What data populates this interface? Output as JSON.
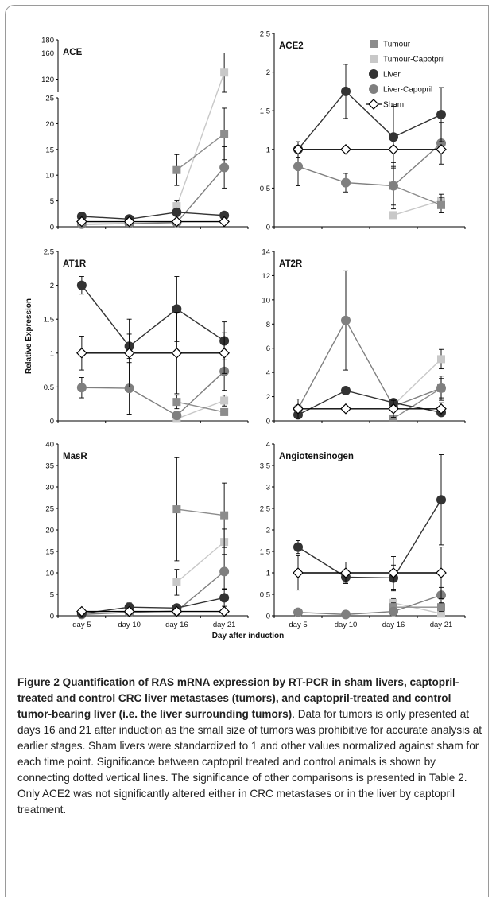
{
  "colors": {
    "tumour": "#8c8c8c",
    "tumour_captopril": "#c8c8c8",
    "liver": "#333333",
    "liver_captopril": "#7f7f7f",
    "sham": "#000000"
  },
  "legend": [
    "Tumour",
    "Tumour-Capotpril",
    "Liver",
    "Liver-Capopril",
    "Sham"
  ],
  "caption": {
    "title": "Figure 2 Quantification of RAS mRNA expression by RT-PCR in sham livers, captopril-treated and control CRC liver metastases (tumors), and captopril-treated and control tumor-bearing liver (i.e. the liver surrounding tumors)",
    "body": ". Data for tumors is only presented at days 16 and 21 after induction as the small size of tumors was prohibitive for accurate analysis at earlier stages. Sham livers were standardized to 1 and other values normalized against sham for each time point. Significance between captopril treated and control animals is shown by connecting dotted vertical lines. The significance of other comparisons is presented in Table 2. Only ACE2 was not significantly altered either in CRC metastases or in the liver by captopril treatment."
  },
  "chart_data": [
    {
      "type": "line",
      "title": "ACE",
      "categories": [
        "day 5",
        "day 10",
        "day 16",
        "day 21"
      ],
      "ylabel": "",
      "axis_break": true,
      "yticks_lower": [
        0,
        5,
        10,
        15,
        20,
        25
      ],
      "yticks_upper": [
        120,
        160,
        180
      ],
      "series": [
        {
          "name": "Tumour",
          "values": [
            null,
            null,
            11,
            18
          ],
          "err": [
            null,
            null,
            3,
            5
          ]
        },
        {
          "name": "Tumour-Capotpril",
          "values": [
            null,
            null,
            4,
            130
          ],
          "err": [
            null,
            null,
            1,
            30
          ]
        },
        {
          "name": "Liver",
          "values": [
            2,
            1.5,
            2.8,
            2.2
          ],
          "err": [
            0.3,
            0.3,
            0.5,
            0.5
          ]
        },
        {
          "name": "Liver-Capopril",
          "values": [
            0.5,
            0.6,
            0.8,
            11.5
          ],
          "err": [
            0.2,
            0.2,
            0.3,
            4
          ]
        },
        {
          "name": "Sham",
          "values": [
            1,
            1,
            1,
            1
          ],
          "err": [
            0,
            0,
            0,
            0
          ]
        }
      ]
    },
    {
      "type": "line",
      "title": "ACE2",
      "categories": [
        "day 5",
        "day 10",
        "day 16",
        "day 21"
      ],
      "ylim": [
        0,
        2.5
      ],
      "yticks": [
        0,
        0.5,
        1,
        1.5,
        2,
        2.5
      ],
      "series": [
        {
          "name": "Tumour",
          "values": [
            null,
            null,
            0.53,
            0.28
          ],
          "err": [
            null,
            null,
            0.25,
            0.1
          ]
        },
        {
          "name": "Tumour-Capotpril",
          "values": [
            null,
            null,
            0.15,
            0.34
          ],
          "err": [
            null,
            null,
            0.03,
            0.08
          ]
        },
        {
          "name": "Liver",
          "values": [
            1.0,
            1.75,
            1.16,
            1.45
          ],
          "err": [
            0.1,
            0.35,
            0.4,
            0.35
          ]
        },
        {
          "name": "Liver-Capopril",
          "values": [
            0.78,
            0.57,
            0.53,
            1.08
          ],
          "err": [
            0.25,
            0.12,
            0.3,
            0.27
          ]
        },
        {
          "name": "Sham",
          "values": [
            1,
            1,
            1,
            1
          ],
          "err": [
            0,
            0,
            0,
            0
          ]
        }
      ]
    },
    {
      "type": "line",
      "title": "AT1R",
      "categories": [
        "day 5",
        "day 10",
        "day 16",
        "day 21"
      ],
      "ylabel": "Relative Expression",
      "ylim": [
        0,
        2.5
      ],
      "yticks": [
        0,
        0.5,
        1,
        1.5,
        2,
        2.5
      ],
      "series": [
        {
          "name": "Tumour",
          "values": [
            null,
            null,
            0.28,
            0.13
          ],
          "err": [
            null,
            null,
            0.1,
            0.03
          ]
        },
        {
          "name": "Tumour-Capotpril",
          "values": [
            null,
            null,
            0.03,
            0.3
          ],
          "err": [
            null,
            null,
            0.02,
            0.08
          ]
        },
        {
          "name": "Liver",
          "values": [
            2.0,
            1.1,
            1.65,
            1.18
          ],
          "err": [
            0.13,
            0.18,
            0.48,
            0.28
          ]
        },
        {
          "name": "Liver-Capopril",
          "values": [
            0.49,
            0.48,
            0.08,
            0.73
          ],
          "err": [
            0.15,
            0.38,
            0.03,
            0.28
          ]
        },
        {
          "name": "Sham",
          "values": [
            1,
            1,
            1,
            1
          ],
          "err": [
            0.25,
            0.5,
            0.6,
            0.3
          ]
        }
      ]
    },
    {
      "type": "line",
      "title": "AT2R",
      "categories": [
        "day 5",
        "day 10",
        "day 16",
        "day 21"
      ],
      "ylim": [
        0,
        14
      ],
      "yticks": [
        0,
        2,
        4,
        6,
        8,
        10,
        12,
        14
      ],
      "series": [
        {
          "name": "Tumour",
          "values": [
            null,
            null,
            0.2,
            2.7
          ],
          "err": [
            null,
            null,
            0.1,
            0.8
          ]
        },
        {
          "name": "Tumour-Capotpril",
          "values": [
            null,
            null,
            1.3,
            5.1
          ],
          "err": [
            null,
            null,
            0.4,
            0.8
          ]
        },
        {
          "name": "Liver",
          "values": [
            0.5,
            2.5,
            1.5,
            0.7
          ],
          "err": [
            0.2,
            0.2,
            0.3,
            0.2
          ]
        },
        {
          "name": "Liver-Capopril",
          "values": [
            1.0,
            8.3,
            1.2,
            2.7
          ],
          "err": [
            0.3,
            4.1,
            0.4,
            1.0
          ]
        },
        {
          "name": "Sham",
          "values": [
            1,
            1,
            1,
            1
          ],
          "err": [
            0.8,
            0,
            0.7,
            0.5
          ]
        }
      ]
    },
    {
      "type": "line",
      "title": "MasR",
      "categories": [
        "day 5",
        "day 10",
        "day 16",
        "day 21"
      ],
      "ylim": [
        0,
        40
      ],
      "yticks": [
        0,
        5,
        10,
        15,
        20,
        25,
        30,
        35,
        40
      ],
      "series": [
        {
          "name": "Tumour",
          "values": [
            null,
            null,
            24.8,
            23.4
          ],
          "err": [
            null,
            null,
            12,
            7.5
          ]
        },
        {
          "name": "Tumour-Capotpril",
          "values": [
            null,
            null,
            7.8,
            17.2
          ],
          "err": [
            null,
            null,
            3,
            3
          ]
        },
        {
          "name": "Liver",
          "values": [
            0.5,
            2.0,
            1.8,
            4.2
          ],
          "err": [
            0.3,
            1.0,
            0.6,
            2
          ]
        },
        {
          "name": "Liver-Capopril",
          "values": [
            0.3,
            0.8,
            1.1,
            10.3
          ],
          "err": [
            0.2,
            0.4,
            0.5,
            4
          ]
        },
        {
          "name": "Sham",
          "values": [
            1,
            1,
            1,
            1
          ],
          "err": [
            0,
            0,
            0,
            0
          ]
        }
      ]
    },
    {
      "type": "line",
      "title": "Angiotensinogen",
      "categories": [
        "day 5",
        "day 10",
        "day 16",
        "day 21"
      ],
      "xlabel": "Day after induction",
      "ylim": [
        0,
        4
      ],
      "yticks": [
        0,
        0.5,
        1,
        1.5,
        2,
        2.5,
        3,
        3.5,
        4
      ],
      "series": [
        {
          "name": "Tumour",
          "values": [
            null,
            null,
            0.2,
            0.2
          ],
          "err": [
            null,
            null,
            0.1,
            0.1
          ]
        },
        {
          "name": "Tumour-Capotpril",
          "values": [
            null,
            null,
            0.3,
            0.05
          ],
          "err": [
            null,
            null,
            0.1,
            0.03
          ]
        },
        {
          "name": "Liver",
          "values": [
            1.6,
            0.9,
            0.88,
            2.7
          ],
          "err": [
            0.15,
            0.12,
            0.3,
            1.05
          ]
        },
        {
          "name": "Liver-Capopril",
          "values": [
            0.08,
            0.03,
            0.1,
            0.48
          ],
          "err": [
            0.03,
            0.02,
            0.05,
            0.18
          ]
        },
        {
          "name": "Sham",
          "values": [
            1,
            1,
            1,
            1
          ],
          "err": [
            0.4,
            0.25,
            0.38,
            0.6
          ]
        }
      ]
    }
  ]
}
